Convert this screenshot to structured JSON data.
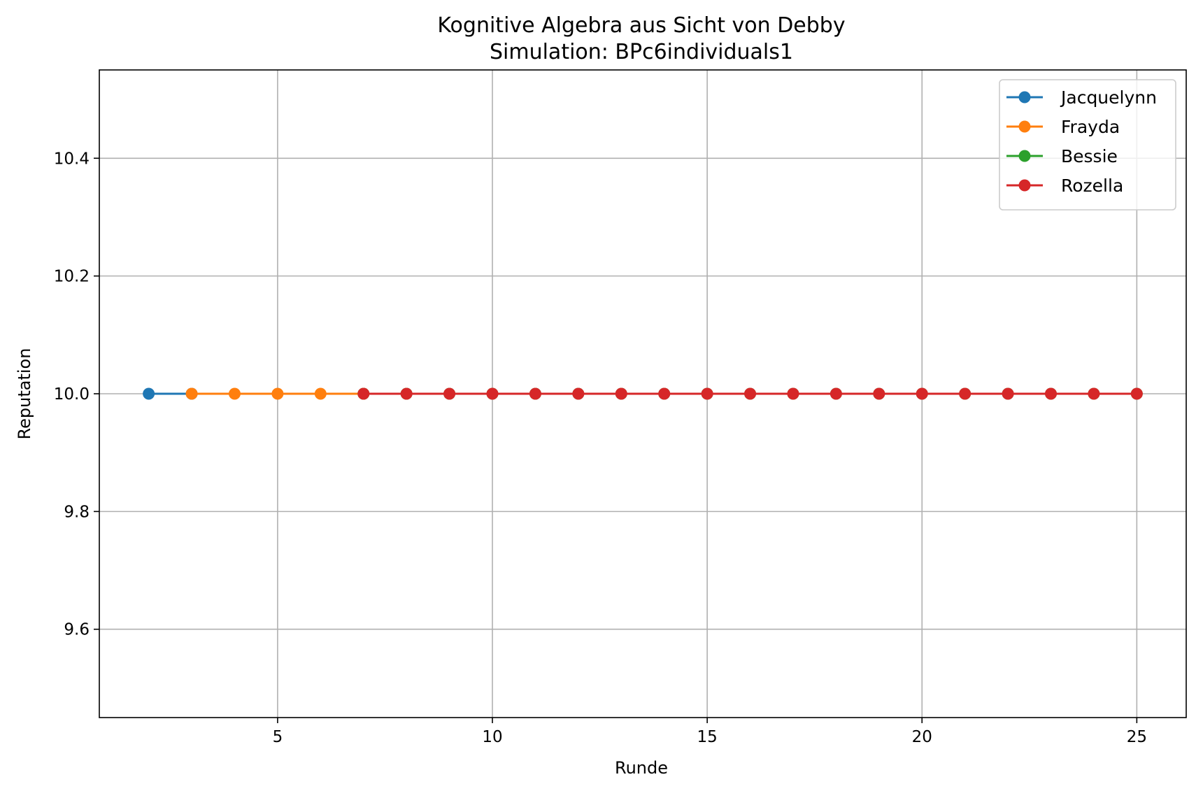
{
  "chart_data": {
    "type": "line",
    "title": "Kognitive Algebra aus Sicht von Debby",
    "subtitle": "Simulation: BPc6individuals1",
    "xlabel": "Runde",
    "ylabel": "Reputation",
    "xlim": [
      0.85,
      26.15
    ],
    "ylim": [
      9.45,
      10.55
    ],
    "xticks": [
      5,
      10,
      15,
      20,
      25
    ],
    "yticks": [
      9.6,
      9.8,
      10.0,
      10.2,
      10.4
    ],
    "xtick_labels": [
      "5",
      "10",
      "15",
      "20",
      "25"
    ],
    "ytick_labels": [
      "9.6",
      "9.8",
      "10.0",
      "10.2",
      "10.4"
    ],
    "grid": true,
    "legend_position": "top-right",
    "marker": "circle",
    "series": [
      {
        "name": "Jacquelynn",
        "color": "#1f77b4",
        "x": [
          2,
          3
        ],
        "y": [
          10.0,
          10.0
        ]
      },
      {
        "name": "Frayda",
        "color": "#ff7f0e",
        "x": [
          3,
          4,
          5,
          6,
          7
        ],
        "y": [
          10.0,
          10.0,
          10.0,
          10.0,
          10.0
        ]
      },
      {
        "name": "Bessie",
        "color": "#2ca02c",
        "x": [
          7,
          8,
          9,
          10,
          11,
          12,
          13,
          14,
          15,
          16,
          17,
          18,
          19,
          20,
          21,
          22,
          23,
          24,
          25
        ],
        "y": [
          10.0,
          10.0,
          10.0,
          10.0,
          10.0,
          10.0,
          10.0,
          10.0,
          10.0,
          10.0,
          10.0,
          10.0,
          10.0,
          10.0,
          10.0,
          10.0,
          10.0,
          10.0,
          10.0
        ]
      },
      {
        "name": "Rozella",
        "color": "#d62728",
        "x": [
          7,
          8,
          9,
          10,
          11,
          12,
          13,
          14,
          15,
          16,
          17,
          18,
          19,
          20,
          21,
          22,
          23,
          24,
          25
        ],
        "y": [
          10.0,
          10.0,
          10.0,
          10.0,
          10.0,
          10.0,
          10.0,
          10.0,
          10.0,
          10.0,
          10.0,
          10.0,
          10.0,
          10.0,
          10.0,
          10.0,
          10.0,
          10.0,
          10.0
        ]
      }
    ]
  }
}
